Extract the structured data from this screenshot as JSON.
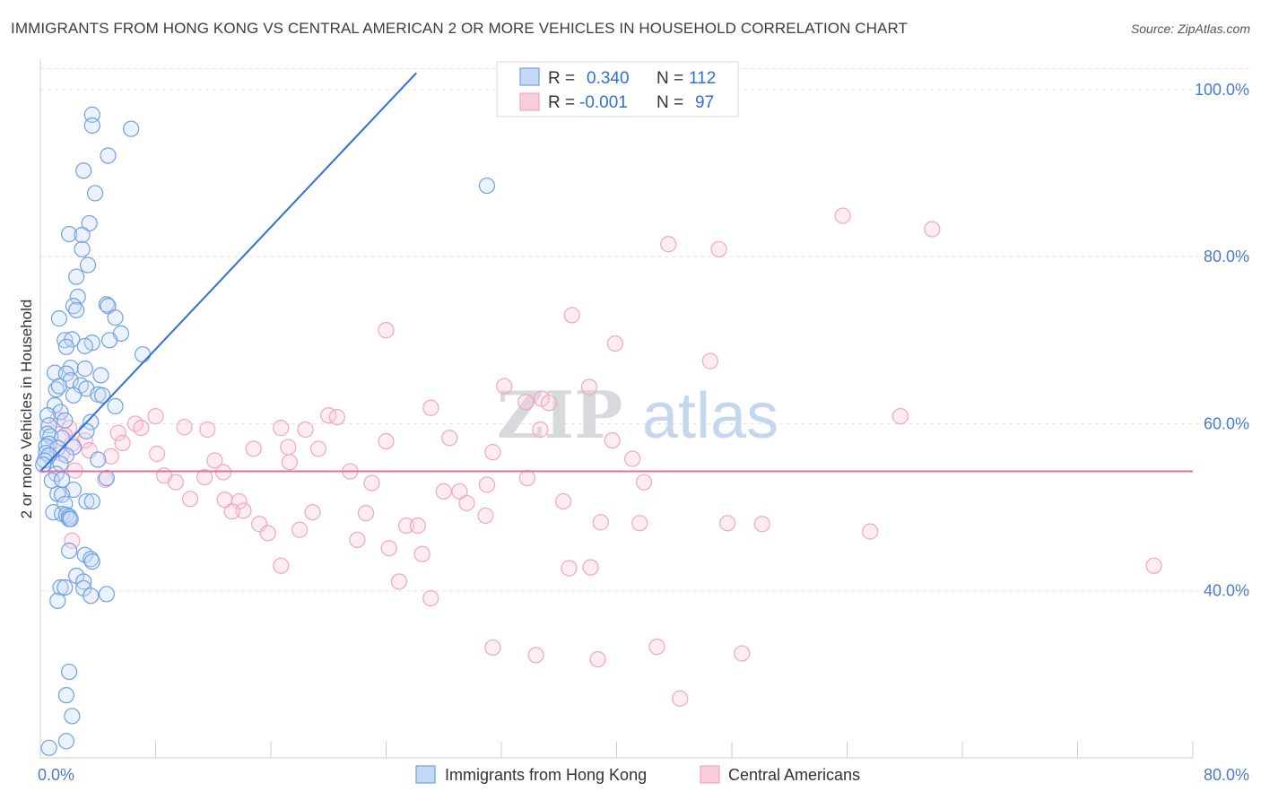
{
  "title": "IMMIGRANTS FROM HONG KONG VS CENTRAL AMERICAN 2 OR MORE VEHICLES IN HOUSEHOLD CORRELATION CHART",
  "source": "Source: ZipAtlas.com",
  "watermark": {
    "zip": "ZIP",
    "atlas": "atlas"
  },
  "stats": {
    "r_label": "R =",
    "n_label": "N =",
    "rows": [
      {
        "r": "0.340",
        "n": "112"
      },
      {
        "r": "-0.001",
        "n": "97"
      }
    ]
  },
  "chart_data": {
    "type": "scatter",
    "title": "IMMIGRANTS FROM HONG KONG VS CENTRAL AMERICAN 2 OR MORE VEHICLES IN HOUSEHOLD CORRELATION CHART",
    "xlabel": "",
    "ylabel": "2 or more Vehicles in Household",
    "xlim": [
      0,
      80
    ],
    "ylim": [
      20,
      103
    ],
    "x_tick_labels": [
      "0.0%",
      "80.0%"
    ],
    "y_tick_labels": [
      "40.0%",
      "60.0%",
      "80.0%",
      "100.0%"
    ],
    "y_ticks": [
      40,
      60,
      80,
      100
    ],
    "grid": true,
    "legend_position": "bottom",
    "series": [
      {
        "name": "Immigrants from Hong Kong",
        "color": "#6fa0e6",
        "line_color": "#2f6fd6",
        "trend": {
          "x": [
            0,
            26.1
          ],
          "y": [
            54.3,
            102
          ]
        },
        "points": [
          [
            3.6,
            97
          ],
          [
            3.6,
            95.7
          ],
          [
            6.3,
            95.3
          ],
          [
            4.7,
            92.1
          ],
          [
            3.0,
            90.3
          ],
          [
            31.0,
            88.5
          ],
          [
            3.8,
            87.6
          ],
          [
            3.4,
            84.0
          ],
          [
            2.0,
            82.7
          ],
          [
            2.9,
            82.6
          ],
          [
            2.9,
            80.9
          ],
          [
            3.3,
            79.0
          ],
          [
            2.5,
            77.6
          ],
          [
            2.6,
            75.2
          ],
          [
            2.3,
            74.1
          ],
          [
            4.6,
            74.3
          ],
          [
            2.5,
            73.6
          ],
          [
            4.7,
            74.1
          ],
          [
            1.3,
            72.6
          ],
          [
            5.2,
            72.7
          ],
          [
            5.6,
            70.8
          ],
          [
            4.8,
            70.0
          ],
          [
            3.6,
            69.7
          ],
          [
            1.7,
            70.0
          ],
          [
            2.2,
            70.1
          ],
          [
            3.1,
            69.3
          ],
          [
            1.8,
            69.2
          ],
          [
            7.1,
            68.3
          ],
          [
            1.0,
            66.1
          ],
          [
            2.1,
            66.7
          ],
          [
            3.1,
            66.6
          ],
          [
            1.8,
            66.0
          ],
          [
            4.2,
            65.8
          ],
          [
            2.1,
            65.2
          ],
          [
            2.8,
            64.6
          ],
          [
            1.1,
            64.1
          ],
          [
            1.3,
            64.5
          ],
          [
            3.2,
            64.2
          ],
          [
            2.3,
            63.4
          ],
          [
            4.0,
            63.5
          ],
          [
            4.3,
            63.4
          ],
          [
            5.2,
            62.1
          ],
          [
            1.0,
            62.2
          ],
          [
            1.4,
            61.4
          ],
          [
            0.5,
            61.0
          ],
          [
            1.7,
            60.4
          ],
          [
            3.5,
            60.2
          ],
          [
            0.6,
            59.8
          ],
          [
            3.2,
            59.1
          ],
          [
            0.5,
            58.8
          ],
          [
            0.7,
            58.5
          ],
          [
            1.5,
            58.3
          ],
          [
            0.6,
            57.6
          ],
          [
            0.4,
            57.3
          ],
          [
            1.2,
            57.1
          ],
          [
            2.3,
            57.2
          ],
          [
            0.4,
            56.5
          ],
          [
            0.6,
            56.2
          ],
          [
            1.8,
            56.2
          ],
          [
            0.3,
            55.6
          ],
          [
            0.2,
            55.1
          ],
          [
            1.4,
            55.2
          ],
          [
            4.0,
            55.7
          ],
          [
            1.1,
            54.0
          ],
          [
            0.8,
            53.2
          ],
          [
            1.5,
            53.3
          ],
          [
            4.6,
            53.5
          ],
          [
            2.3,
            52.1
          ],
          [
            1.2,
            51.6
          ],
          [
            1.5,
            51.5
          ],
          [
            3.2,
            50.7
          ],
          [
            3.6,
            50.7
          ],
          [
            1.7,
            50.4
          ],
          [
            0.9,
            49.4
          ],
          [
            1.5,
            49.2
          ],
          [
            1.8,
            49.1
          ],
          [
            2.0,
            48.9
          ],
          [
            2.0,
            48.6
          ],
          [
            2.1,
            48.6
          ],
          [
            2.0,
            44.8
          ],
          [
            3.1,
            44.3
          ],
          [
            3.5,
            43.8
          ],
          [
            3.6,
            43.5
          ],
          [
            2.5,
            41.8
          ],
          [
            3.0,
            41.1
          ],
          [
            1.4,
            40.4
          ],
          [
            1.7,
            40.4
          ],
          [
            3.0,
            40.3
          ],
          [
            3.5,
            39.4
          ],
          [
            4.6,
            39.6
          ],
          [
            1.2,
            38.8
          ],
          [
            2.0,
            30.3
          ],
          [
            1.8,
            27.5
          ],
          [
            2.2,
            25.0
          ],
          [
            1.8,
            22.0
          ],
          [
            0.6,
            21.2
          ]
        ]
      },
      {
        "name": "Central Americans",
        "color": "#f0a6bf",
        "line_color": "#e0709a",
        "trend": {
          "x": [
            0,
            80
          ],
          "y": [
            54.3,
            54.3
          ]
        },
        "points": [
          [
            55.7,
            84.9
          ],
          [
            61.9,
            83.3
          ],
          [
            43.6,
            81.5
          ],
          [
            47.1,
            80.9
          ],
          [
            36.9,
            73.0
          ],
          [
            24.0,
            71.2
          ],
          [
            39.9,
            69.6
          ],
          [
            46.5,
            67.5
          ],
          [
            32.2,
            64.5
          ],
          [
            38.1,
            64.4
          ],
          [
            34.8,
            63.0
          ],
          [
            33.7,
            62.6
          ],
          [
            35.3,
            62.5
          ],
          [
            27.1,
            61.9
          ],
          [
            8.0,
            60.9
          ],
          [
            20.0,
            61.0
          ],
          [
            20.6,
            60.8
          ],
          [
            59.7,
            60.9
          ],
          [
            6.6,
            60.0
          ],
          [
            1.2,
            60.5
          ],
          [
            2.0,
            59.5
          ],
          [
            7.0,
            59.5
          ],
          [
            10.0,
            59.6
          ],
          [
            11.6,
            59.3
          ],
          [
            16.7,
            59.5
          ],
          [
            18.4,
            59.3
          ],
          [
            34.7,
            59.3
          ],
          [
            1.7,
            58.6
          ],
          [
            5.4,
            58.9
          ],
          [
            28.4,
            58.3
          ],
          [
            3.1,
            58.0
          ],
          [
            24.0,
            57.9
          ],
          [
            39.7,
            58.0
          ],
          [
            2.2,
            57.6
          ],
          [
            5.7,
            57.7
          ],
          [
            14.8,
            57.0
          ],
          [
            17.2,
            57.2
          ],
          [
            19.3,
            57.0
          ],
          [
            3.4,
            56.8
          ],
          [
            1.5,
            56.4
          ],
          [
            8.1,
            56.4
          ],
          [
            31.4,
            56.6
          ],
          [
            4.9,
            56.1
          ],
          [
            41.1,
            55.8
          ],
          [
            12.1,
            55.6
          ],
          [
            17.3,
            55.4
          ],
          [
            12.7,
            54.2
          ],
          [
            21.5,
            54.3
          ],
          [
            2.4,
            54.4
          ],
          [
            8.6,
            53.8
          ],
          [
            11.4,
            53.6
          ],
          [
            4.5,
            53.3
          ],
          [
            9.4,
            53.0
          ],
          [
            41.9,
            53.0
          ],
          [
            33.8,
            53.5
          ],
          [
            23.0,
            52.9
          ],
          [
            31.0,
            52.7
          ],
          [
            28.0,
            51.9
          ],
          [
            29.1,
            51.9
          ],
          [
            10.4,
            51.0
          ],
          [
            12.8,
            50.9
          ],
          [
            13.8,
            50.7
          ],
          [
            36.3,
            50.7
          ],
          [
            29.6,
            50.5
          ],
          [
            14.1,
            49.6
          ],
          [
            13.3,
            49.5
          ],
          [
            18.9,
            49.4
          ],
          [
            22.6,
            49.3
          ],
          [
            30.9,
            49.0
          ],
          [
            15.2,
            48.0
          ],
          [
            25.4,
            47.8
          ],
          [
            26.2,
            47.8
          ],
          [
            38.9,
            48.2
          ],
          [
            41.6,
            48.1
          ],
          [
            47.7,
            48.1
          ],
          [
            50.1,
            48.0
          ],
          [
            18.0,
            47.3
          ],
          [
            57.6,
            47.1
          ],
          [
            15.8,
            46.9
          ],
          [
            2.2,
            46.0
          ],
          [
            22.0,
            46.1
          ],
          [
            24.2,
            45.1
          ],
          [
            26.5,
            44.4
          ],
          [
            16.7,
            43.0
          ],
          [
            36.7,
            42.7
          ],
          [
            38.2,
            42.8
          ],
          [
            77.3,
            43.0
          ],
          [
            24.9,
            41.1
          ],
          [
            27.1,
            39.1
          ],
          [
            31.4,
            33.2
          ],
          [
            34.4,
            32.3
          ],
          [
            38.7,
            31.8
          ],
          [
            42.8,
            33.3
          ],
          [
            48.7,
            32.5
          ],
          [
            44.4,
            27.1
          ]
        ]
      }
    ]
  },
  "legend": {
    "items": [
      "Immigrants from Hong Kong",
      "Central Americans"
    ]
  }
}
